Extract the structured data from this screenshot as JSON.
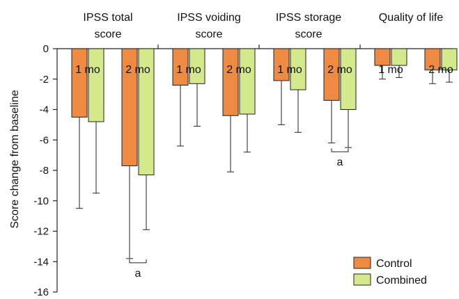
{
  "chart_data": {
    "type": "bar",
    "ylabel": "Score change from baseline",
    "ylim": [
      -16,
      0
    ],
    "y_ticks": [
      "0",
      "-2",
      "-4",
      "-6",
      "-8",
      "-10",
      "-12",
      "-14",
      "-16"
    ],
    "y_tick_values": [
      0,
      -2,
      -4,
      -6,
      -8,
      -10,
      -12,
      -14,
      -16
    ],
    "groups": [
      {
        "title_lines": [
          "IPSS total",
          "score"
        ]
      },
      {
        "title_lines": [
          "IPSS voiding",
          "score"
        ]
      },
      {
        "title_lines": [
          "IPSS storage",
          "score"
        ]
      },
      {
        "title_lines": [
          "Quality of life"
        ]
      }
    ],
    "categories": [
      {
        "group": 0,
        "label": "1 mo"
      },
      {
        "group": 0,
        "label": "2 mo"
      },
      {
        "group": 1,
        "label": "1 mo"
      },
      {
        "group": 1,
        "label": "2 mo"
      },
      {
        "group": 2,
        "label": "1 mo"
      },
      {
        "group": 2,
        "label": "2 mo"
      },
      {
        "group": 3,
        "label": "1 mo"
      },
      {
        "group": 3,
        "label": "2 mo"
      }
    ],
    "series": [
      {
        "name": "Control",
        "color": "#ee8a42",
        "values": [
          -4.5,
          -7.7,
          -2.4,
          -4.4,
          -2.1,
          -3.4,
          -1.1,
          -1.4
        ],
        "error_to": [
          -10.5,
          -13.8,
          -6.4,
          -8.1,
          -5.0,
          -6.2,
          -2.0,
          -2.3
        ]
      },
      {
        "name": "Combined",
        "color": "#d4e88c",
        "values": [
          -4.8,
          -8.3,
          -2.3,
          -4.3,
          -2.7,
          -4.0,
          -1.1,
          -1.4
        ],
        "error_to": [
          -9.5,
          -11.9,
          -5.1,
          -6.8,
          -5.5,
          -6.5,
          -1.9,
          -2.2
        ]
      }
    ],
    "significance": [
      {
        "category": 1,
        "label": "a"
      },
      {
        "category": 5,
        "label": "a"
      }
    ],
    "legend_position": "bottom-right",
    "grid": false
  }
}
